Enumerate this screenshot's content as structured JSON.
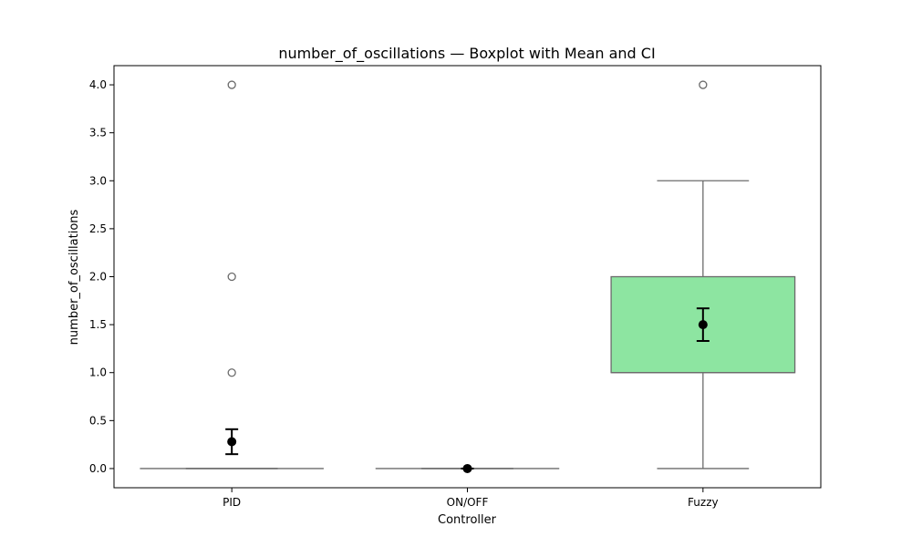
{
  "chart_data": {
    "type": "box",
    "title": "number_of_oscillations — Boxplot with Mean and CI",
    "xlabel": "Controller",
    "ylabel": "number_of_oscillations",
    "categories": [
      "PID",
      "ON/OFF",
      "Fuzzy"
    ],
    "ylim": [
      -0.2,
      4.2
    ],
    "yticks": [
      0.0,
      0.5,
      1.0,
      1.5,
      2.0,
      2.5,
      3.0,
      3.5,
      4.0
    ],
    "ytick_labels": [
      "0.0",
      "0.5",
      "1.0",
      "1.5",
      "2.0",
      "2.5",
      "3.0",
      "3.5",
      "4.0"
    ],
    "grid": false,
    "boxes": [
      {
        "category": "PID",
        "whisker_low": 0,
        "q1": 0,
        "median": 0,
        "q3": 0,
        "whisker_high": 0,
        "outliers": [
          1,
          2,
          4
        ],
        "mean": 0.28,
        "ci": [
          0.15,
          0.41
        ],
        "fill": "#a1c9f4"
      },
      {
        "category": "ON/OFF",
        "whisker_low": 0,
        "q1": 0,
        "median": 0,
        "q3": 0,
        "whisker_high": 0,
        "outliers": [],
        "mean": 0,
        "ci": [
          0,
          0
        ],
        "fill": "#ffb482"
      },
      {
        "category": "Fuzzy",
        "whisker_low": 0,
        "q1": 1,
        "median": 1,
        "q3": 2,
        "whisker_high": 3,
        "outliers": [
          4
        ],
        "mean": 1.5,
        "ci": [
          1.33,
          1.67
        ],
        "fill": "#8de5a1"
      }
    ],
    "colors": {
      "box_edge": "#6b6b6b",
      "mean_marker": "#000000",
      "outlier_edge": "#6b6b6b"
    }
  }
}
